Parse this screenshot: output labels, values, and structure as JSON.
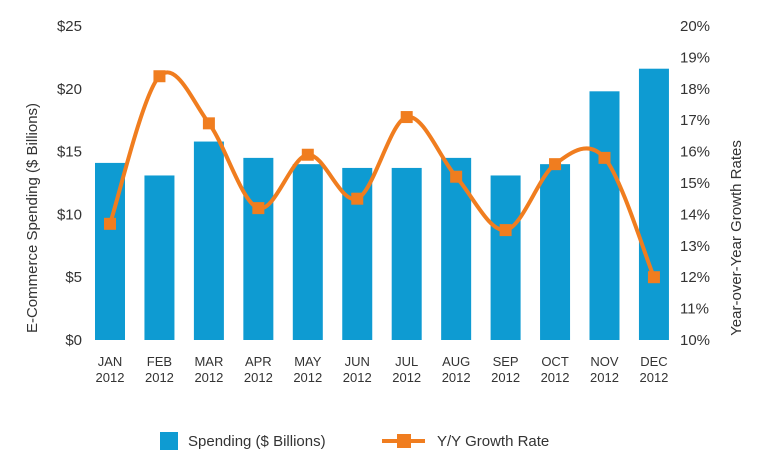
{
  "chart_data": {
    "type": "bar+line",
    "categories": [
      [
        "JAN",
        "2012"
      ],
      [
        "FEB",
        "2012"
      ],
      [
        "MAR",
        "2012"
      ],
      [
        "APR",
        "2012"
      ],
      [
        "MAY",
        "2012"
      ],
      [
        "JUN",
        "2012"
      ],
      [
        "JUL",
        "2012"
      ],
      [
        "AUG",
        "2012"
      ],
      [
        "SEP",
        "2012"
      ],
      [
        "OCT",
        "2012"
      ],
      [
        "NOV",
        "2012"
      ],
      [
        "DEC",
        "2012"
      ]
    ],
    "series": [
      {
        "name": "Spending ($ Billions)",
        "type": "bar",
        "axis": "left",
        "color": "#0e9bd2",
        "values": [
          14.1,
          13.1,
          15.8,
          14.5,
          14.0,
          13.7,
          13.7,
          14.5,
          13.1,
          14.0,
          19.8,
          21.6
        ]
      },
      {
        "name": "Y/Y Growth Rate",
        "type": "line",
        "axis": "right",
        "color": "#f07d1f",
        "values": [
          13.7,
          18.4,
          16.9,
          14.2,
          15.9,
          14.5,
          17.1,
          15.2,
          13.5,
          15.6,
          15.8,
          12.0
        ]
      }
    ],
    "ylabel_left": "E-Commerce Spending ($ Billions)",
    "ylabel_right": "Year-over-Year Growth Rates",
    "ylim_left": [
      0,
      25
    ],
    "ylim_right": [
      10,
      20
    ],
    "yticks_left": [
      "$0",
      "$5",
      "$10",
      "$15",
      "$20",
      "$25"
    ],
    "yticks_right": [
      "10%",
      "11%",
      "12%",
      "13%",
      "14%",
      "15%",
      "16%",
      "17%",
      "18%",
      "19%",
      "20%"
    ],
    "grid": false,
    "legend": "bottom"
  }
}
